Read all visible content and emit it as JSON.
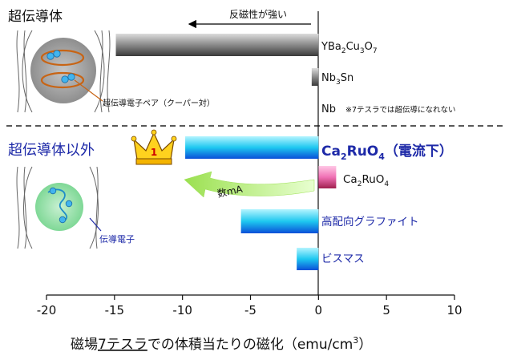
{
  "chart_data": {
    "type": "bar",
    "orientation": "horizontal",
    "xlim": [
      -20,
      10
    ],
    "x_ticks": [
      "-20",
      "-15",
      "-10",
      "-5",
      "0",
      "5",
      "10"
    ],
    "x_tick_values": [
      -20,
      -15,
      -10,
      -5,
      0,
      5,
      10
    ],
    "xlabel": "磁場7テスラでの体積当たりの磁化（emu/cm³）",
    "xlabel_parts": {
      "prefix": "磁場",
      "underlined": "7テスラ",
      "suffix": "での体積当たりの磁化（emu/cm",
      "sup": "3",
      "close": "）"
    },
    "arrow_label": "反磁性が強い",
    "section_superconductors": "超伝導体",
    "section_others": "超伝導体以外",
    "categories": [
      "YBa2Cu3O7",
      "Nb3Sn",
      "Nb",
      "Ca2RuO4（電流下）",
      "Ca2RuO4",
      "高配向グラファイト",
      "ビスマス"
    ],
    "values": [
      -14.9,
      -0.5,
      0,
      -9.8,
      1.3,
      -5.7,
      -1.6
    ],
    "bar_colors": [
      "gray",
      "gray",
      "none",
      "cyan",
      "pink",
      "cyan",
      "cyan"
    ],
    "nb_note": "※7テスラでは超伝導になれない",
    "crown_rank": "1",
    "current_arrow_label": "数mA",
    "inset_pair_label": "超伝導電子ペア（クーパー対）",
    "inset_electron_label": "伝導電子",
    "grid": false
  }
}
